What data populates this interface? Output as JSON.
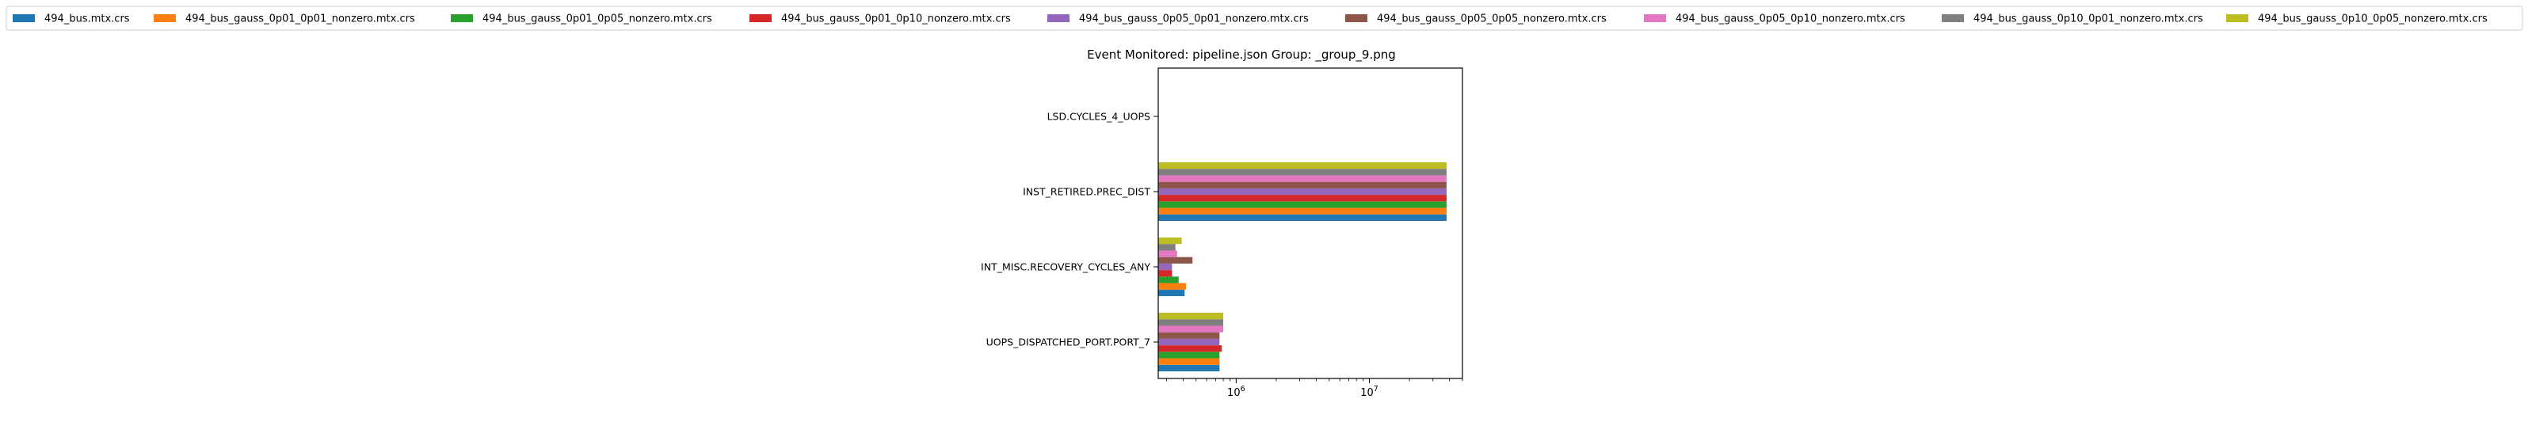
{
  "chart_data": {
    "type": "bar",
    "orientation": "horizontal",
    "title": "Event Monitored: pipeline.json Group: _group_9.png",
    "xlabel": "",
    "ylabel": "",
    "xscale": "log",
    "xlim": [
      260000,
      50000000
    ],
    "x_tick_labels": [
      "10^6",
      "10^7"
    ],
    "x_tick_values": [
      1000000,
      10000000
    ],
    "legend_position": "top, outside plot",
    "grid": false,
    "categories": [
      "UOPS_DISPATCHED_PORT.PORT_7",
      "INT_MISC.RECOVERY_CYCLES_ANY",
      "INST_RETIRED.PREC_DIST",
      "LSD.CYCLES_4_UOPS"
    ],
    "series": [
      {
        "name": "494_bus.mtx.crs",
        "color": "#1f77b4",
        "values": [
          750000,
          410000,
          38000000,
          null
        ]
      },
      {
        "name": "494_bus_gauss_0p01_0p01_nonzero.mtx.crs",
        "color": "#ff7f0e",
        "values": [
          750000,
          420000,
          38000000,
          null
        ]
      },
      {
        "name": "494_bus_gauss_0p01_0p05_nonzero.mtx.crs",
        "color": "#2ca02c",
        "values": [
          750000,
          370000,
          38000000,
          null
        ]
      },
      {
        "name": "494_bus_gauss_0p01_0p10_nonzero.mtx.crs",
        "color": "#d62728",
        "values": [
          780000,
          330000,
          38000000,
          null
        ]
      },
      {
        "name": "494_bus_gauss_0p05_0p01_nonzero.mtx.crs",
        "color": "#9467bd",
        "values": [
          750000,
          330000,
          38000000,
          null
        ]
      },
      {
        "name": "494_bus_gauss_0p05_0p05_nonzero.mtx.crs",
        "color": "#8c564b",
        "values": [
          750000,
          470000,
          38000000,
          null
        ]
      },
      {
        "name": "494_bus_gauss_0p05_0p10_nonzero.mtx.crs",
        "color": "#e377c2",
        "values": [
          800000,
          360000,
          38000000,
          null
        ]
      },
      {
        "name": "494_bus_gauss_0p10_0p01_nonzero.mtx.crs",
        "color": "#7f7f7f",
        "values": [
          800000,
          350000,
          38000000,
          null
        ]
      },
      {
        "name": "494_bus_gauss_0p10_0p05_nonzero.mtx.crs",
        "color": "#bcbd22",
        "values": [
          800000,
          390000,
          38000000,
          null
        ]
      }
    ]
  }
}
